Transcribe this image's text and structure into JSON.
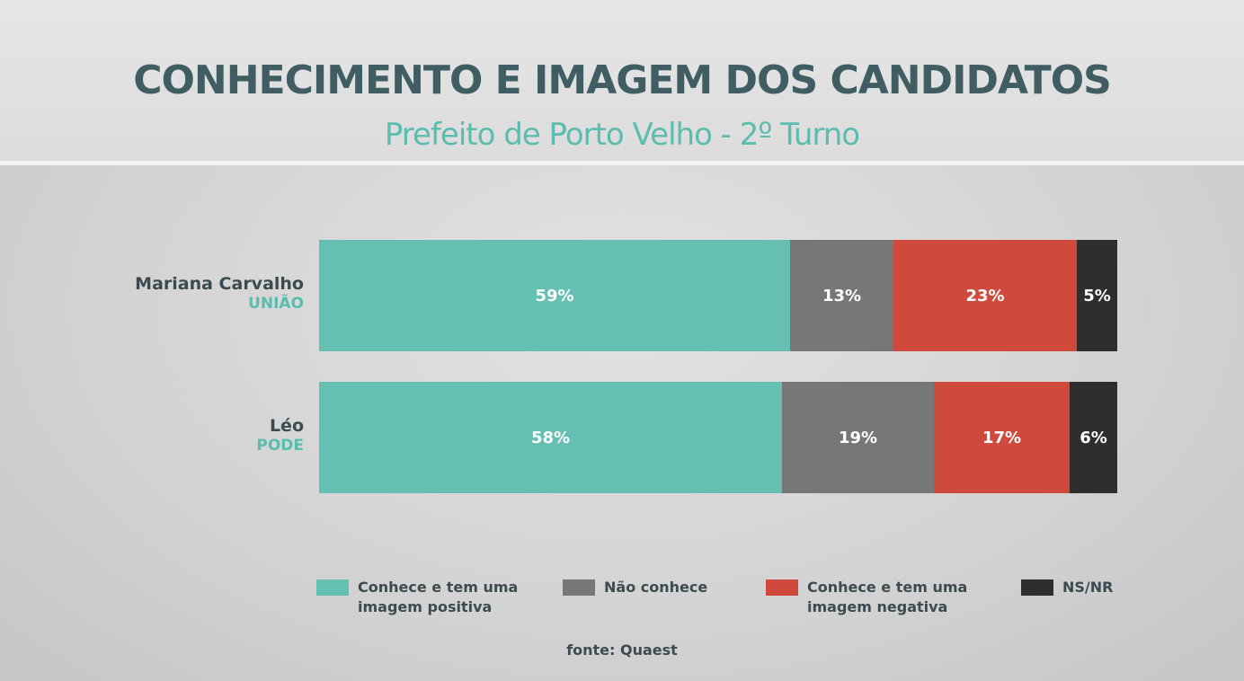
{
  "chart_data": {
    "type": "bar",
    "orientation": "horizontal",
    "stacked": true,
    "title": "CONHECIMENTO E IMAGEM DOS CANDIDATOS",
    "subtitle": "Prefeito de Porto Velho - 2º Turno",
    "candidates": [
      {
        "name": "Mariana Carvalho",
        "party": "UNIÃO"
      },
      {
        "name": "Léo",
        "party": "PODE"
      }
    ],
    "series": [
      {
        "name": "Conhece e tem uma imagem positiva",
        "legend_label": "Conhece e tem uma\nimagem positiva",
        "color": "#66bfb3",
        "values": [
          59,
          58
        ],
        "labels": [
          "59%",
          "58%"
        ]
      },
      {
        "name": "Não conhece",
        "legend_label": "Não conhece",
        "color": "#777777",
        "values": [
          13,
          19
        ],
        "labels": [
          "13%",
          "19%"
        ]
      },
      {
        "name": "Conhece e tem uma imagem negativa",
        "legend_label": "Conhece e tem uma\nimagem negativa",
        "color": "#cf4a3c",
        "values": [
          23,
          17
        ],
        "labels": [
          "23%",
          "17%"
        ]
      },
      {
        "name": "NS/NR",
        "legend_label": "NS/NR",
        "color": "#2e2e2e",
        "values": [
          5,
          6
        ],
        "labels": [
          "5%",
          "6%"
        ]
      }
    ],
    "legend_position": "bottom",
    "source": "fonte: Quaest"
  }
}
